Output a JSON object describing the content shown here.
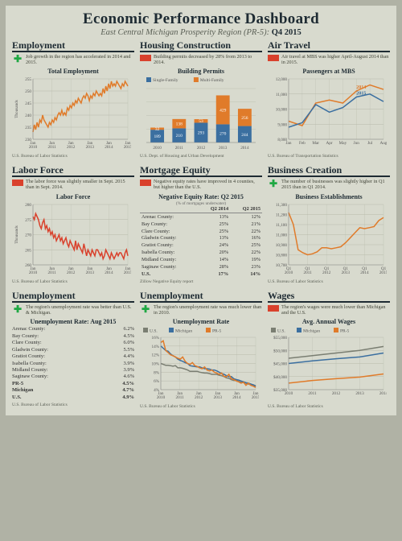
{
  "header": {
    "title": "Economic Performance Dashboard",
    "subtitle_prefix": "East Central Michigan Prosperity Region (PR-5): ",
    "subtitle_bold": "Q4 2015"
  },
  "colors": {
    "orange": "#e07b2a",
    "blue": "#3b6fa0",
    "red": "#d9412c",
    "green": "#1fa843",
    "gray": "#7a7e72",
    "grid": "#b7baab",
    "bg": "#d8dace",
    "text": "#333333"
  },
  "panels": [
    {
      "id": "employment",
      "title": "Employment",
      "indicator": "pos",
      "caption": "Job growth in the region has accelerated in 2014 and 2015.",
      "source": "U.S. Bureau of Labor Statistics",
      "chart": {
        "type": "line",
        "title": "Total Employment",
        "ylabel": "Thousands",
        "ylim": [
          230,
          255
        ],
        "yticks": [
          230,
          235,
          240,
          245,
          250,
          255
        ],
        "xticks": [
          "Jan 2010",
          "Jan 2011",
          "Jan 2012",
          "Jan 2013",
          "Jan 2014",
          "Jan 2015"
        ],
        "series": [
          {
            "name": "employment",
            "color": "#e07b2a",
            "y": [
              233,
              236,
              234,
              237,
              235,
              238,
              237,
              240,
              238,
              237,
              236,
              235,
              237,
              236,
              238,
              237,
              239,
              238,
              240,
              241,
              240,
              242,
              240,
              241,
              240,
              243,
              242,
              244,
              243,
              245,
              244,
              246,
              245,
              247,
              246,
              245,
              247,
              248,
              247,
              249,
              248,
              246,
              248,
              247,
              249,
              248,
              250,
              249,
              248,
              249,
              248,
              251,
              249,
              252,
              250,
              253,
              251,
              254,
              252,
              253,
              252,
              254,
              253,
              252,
              251,
              253,
              252,
              254,
              253,
              252
            ]
          }
        ]
      }
    },
    {
      "id": "housing",
      "title": "Housing Construction",
      "indicator": "neg",
      "caption": "Building permits decreased by 28% from 2013 to 2014.",
      "source": "U.S. Dept. of Housing and Urban Development",
      "chart": {
        "type": "stacked-bar",
        "title": "Building Permits",
        "legend": [
          {
            "label": "Single-Family",
            "color": "#3b6fa0"
          },
          {
            "label": "Multi-Family",
            "color": "#e07b2a"
          }
        ],
        "categories": [
          "2010",
          "2011",
          "2012",
          "2013",
          "2014"
        ],
        "stacks": [
          {
            "name": "single",
            "color": "#3b6fa0",
            "values": [
              189,
              210,
              293,
              270,
              244
            ]
          },
          {
            "name": "multi",
            "color": "#e07b2a",
            "values": [
              32,
              138,
              53,
              429,
              256
            ]
          }
        ],
        "ylim": [
          0,
          800
        ]
      }
    },
    {
      "id": "airtravel",
      "title": "Air Travel",
      "indicator": "neg",
      "caption": "Air travel at MBS was higher April-August 2014 than in 2015.",
      "source": "U.S. Bureau of Transportation Statistics",
      "chart": {
        "type": "line",
        "title": "Passengers at MBS",
        "ylim": [
          8000,
          12000
        ],
        "yticks": [
          8000,
          9000,
          10000,
          11000,
          12000
        ],
        "xticks": [
          "Jan",
          "Feb",
          "Mar",
          "Apr",
          "May",
          "Jun",
          "Jul",
          "Aug"
        ],
        "series": [
          {
            "name": "2014",
            "label": "2014",
            "color": "#e07b2a",
            "y": [
              9200,
              8900,
              10400,
              10600,
              10400,
              11200,
              11600,
              11300
            ]
          },
          {
            "name": "2015",
            "label": "2015",
            "color": "#3b6fa0",
            "y": [
              8800,
              9100,
              10300,
              9800,
              10100,
              10800,
              11000,
              10500
            ]
          }
        ]
      }
    },
    {
      "id": "laborforce",
      "title": "Labor Force",
      "indicator": "neg",
      "caption": "The labor force was slightly smaller in Sept. 2015 than in Sept. 2014.",
      "source": "U.S. Bureau of Labor Statistics",
      "chart": {
        "type": "line",
        "title": "Labor Force",
        "ylabel": "Thousands",
        "ylim": [
          260,
          280
        ],
        "yticks": [
          260,
          265,
          270,
          275,
          280
        ],
        "xticks": [
          "Jan 2010",
          "Jan 2011",
          "Jan 2012",
          "Jan 2013",
          "Jan 2014",
          "Jan 2015"
        ],
        "series": [
          {
            "name": "labor",
            "color": "#d9412c",
            "y": [
              276,
              275,
              277,
              276,
              275,
              273,
              272,
              274,
              275,
              272,
              273,
              271,
              272,
              270,
              271,
              269,
              270,
              268,
              269,
              270,
              268,
              269,
              267,
              268,
              269,
              267,
              266,
              268,
              267,
              266,
              265,
              268,
              265,
              267,
              266,
              265,
              264,
              267,
              265,
              263,
              265,
              264,
              263,
              265,
              264,
              263,
              265,
              265,
              264,
              263,
              264,
              262,
              263,
              265,
              264,
              263,
              262,
              264,
              263,
              262,
              263,
              264,
              263,
              264,
              264,
              263,
              262,
              264,
              265,
              263
            ]
          }
        ]
      }
    },
    {
      "id": "mortgage",
      "title": "Mortgage Equity",
      "indicator": "neg",
      "caption": "Negative equity rates have improved in 4 counties, but higher than the U.S.",
      "source": "Zillow Negative Equity report",
      "table": {
        "title": "Negative Equity Rate: Q2 2015",
        "subtitle": "(% of mortgages underwater)",
        "columns": [
          "",
          "Q2 2014",
          "Q2 2015"
        ],
        "rows": [
          [
            "Arenac County:",
            "13%",
            "12%"
          ],
          [
            "Bay County:",
            "25%",
            "21%"
          ],
          [
            "Clare County:",
            "25%",
            "22%"
          ],
          [
            "Gladwin County:",
            "13%",
            "16%"
          ],
          [
            "Gratiot County:",
            "24%",
            "25%"
          ],
          [
            "Isabella County:",
            "20%",
            "22%"
          ],
          [
            "Midland County:",
            "14%",
            "19%"
          ],
          [
            "Saginaw County:",
            "28%",
            "23%"
          ]
        ],
        "total": [
          "U.S.",
          "17%",
          "14%"
        ]
      }
    },
    {
      "id": "business",
      "title": "Business Creation",
      "indicator": "pos",
      "caption": "The number of businesses was slightly higher in Q1 2015 than in Q1 2014.",
      "source": "U.S. Bureau of Labor Statistics",
      "chart": {
        "type": "line",
        "title": "Business Establishments",
        "ylim": [
          10700,
          11300
        ],
        "yticks": [
          10700,
          10800,
          10900,
          11000,
          11100,
          11200,
          11300
        ],
        "xticks": [
          "Q1 2010",
          "Q1 2011",
          "Q1 2012",
          "Q1 2013",
          "Q1 2014",
          "Q1 2015"
        ],
        "series": [
          {
            "name": "biz",
            "color": "#e07b2a",
            "y": [
              11220,
              11100,
              10850,
              10820,
              10800,
              10810,
              10830,
              10870,
              10870,
              10860,
              10870,
              10880,
              10920,
              10970,
              11020,
              11070,
              11060,
              11070,
              11080,
              11140,
              11170
            ]
          }
        ]
      }
    },
    {
      "id": "unemployment1",
      "title": "Unemployment",
      "indicator": "pos",
      "caption": "The region's unemployment rate was better than U.S. & Michigan.",
      "source": "U.S. Bureau of Labor Statistics",
      "list": {
        "title": "Unemployment Rate: Aug 2015",
        "rows": [
          [
            "Arenac County:",
            "6.2%"
          ],
          [
            "Bay County:",
            "4.5%"
          ],
          [
            "Clare County:",
            "6.0%"
          ],
          [
            "Gladwin County:",
            "5.5%"
          ],
          [
            "Gratiot County:",
            "4.4%"
          ],
          [
            "Isabella County:",
            "3.9%"
          ],
          [
            "Midland County:",
            "3.9%"
          ],
          [
            "Saginaw County:",
            "4.6%"
          ]
        ],
        "totals": [
          [
            "PR-5",
            "4.5%"
          ],
          [
            "Michigan",
            "4.7%"
          ],
          [
            "U.S.",
            "4.9%"
          ]
        ]
      }
    },
    {
      "id": "unemployment2",
      "title": "Unemployment",
      "indicator": "pos",
      "caption": "The region's unemployment rate was much lower than in 2010.",
      "source": "U.S. Bureau of Labor Statistics",
      "chart": {
        "type": "line",
        "title": "Unemployment Rate",
        "legend": [
          {
            "label": "U.S.",
            "color": "#7a7e72"
          },
          {
            "label": "Michigan",
            "color": "#3b6fa0"
          },
          {
            "label": "PR-5",
            "color": "#e07b2a"
          }
        ],
        "ylim": [
          4,
          16
        ],
        "yticks": [
          4,
          6,
          8,
          10,
          12,
          14,
          16
        ],
        "xticks": [
          "Jan 2010",
          "Jan 2011",
          "Jan 2012",
          "Jan 2013",
          "Jan 2014",
          "Jan 2015"
        ],
        "ysuffix": "%",
        "series": [
          {
            "name": "us",
            "color": "#7a7e72",
            "y": [
              10.0,
              9.8,
              9.6,
              9.6,
              9.5,
              9.4,
              9.5,
              9.0,
              9.0,
              8.9,
              8.7,
              8.5,
              8.2,
              8.2,
              8.2,
              8.2,
              8.0,
              7.9,
              7.8,
              7.8,
              7.7,
              7.5,
              7.5,
              7.5,
              7.3,
              7.2,
              7.0,
              6.7,
              6.6,
              6.3,
              6.1,
              6.1,
              5.9,
              5.7,
              5.6,
              5.5,
              5.3,
              5.1,
              5.1,
              4.9
            ]
          },
          {
            "name": "mi",
            "color": "#3b6fa0",
            "y": [
              14,
              13.5,
              13,
              12.8,
              12.2,
              11.8,
              11.5,
              11,
              10.7,
              10.5,
              10.2,
              10,
              9.5,
              9.4,
              9.3,
              9.2,
              9.2,
              9.0,
              8.8,
              8.8,
              8.7,
              8.5,
              8.5,
              8.3,
              8.0,
              7.7,
              7.5,
              7.2,
              7.0,
              7.0,
              6.5,
              6.3,
              6.2,
              6.0,
              5.8,
              5.6,
              5.5,
              5.3,
              5.1,
              4.7
            ]
          },
          {
            "name": "pr5",
            "color": "#e07b2a",
            "y": [
              14.8,
              15.2,
              13,
              12.5,
              12,
              11.8,
              11.5,
              11.2,
              11,
              11.5,
              10.5,
              10.0,
              9.8,
              10.2,
              9.5,
              9.3,
              9.0,
              8.8,
              9.2,
              8.5,
              8.3,
              8.5,
              8.0,
              7.8,
              7.5,
              7.8,
              7.0,
              7.0,
              7.5,
              6.5,
              6.3,
              6.0,
              5.8,
              5.5,
              5.7,
              5.0,
              5.5,
              5.0,
              4.8,
              4.5
            ]
          }
        ]
      }
    },
    {
      "id": "wages",
      "title": "Wages",
      "indicator": "neg",
      "caption": "The region's wages were much lower than Michigan and the U.S.",
      "source": "U.S. Bureau of Labor Statistics",
      "chart": {
        "type": "line",
        "title": "Avg. Annual Wages",
        "legend": [
          {
            "label": "U.S.",
            "color": "#7a7e72"
          },
          {
            "label": "Michigan",
            "color": "#3b6fa0"
          },
          {
            "label": "PR-5",
            "color": "#e07b2a"
          }
        ],
        "ylim": [
          35000,
          55000
        ],
        "yticks": [
          35000,
          40000,
          45000,
          50000,
          55000
        ],
        "xticks": [
          "2010",
          "2011",
          "2012",
          "2013",
          "2014"
        ],
        "yprefix": "$",
        "series": [
          {
            "name": "us",
            "color": "#7a7e72",
            "y": [
              47000,
              48000,
              49000,
              50000,
              51500
            ]
          },
          {
            "name": "mi",
            "color": "#3b6fa0",
            "y": [
              45000,
              46000,
              46800,
              47500,
              49000
            ]
          },
          {
            "name": "pr5",
            "color": "#e07b2a",
            "y": [
              37500,
              38500,
              39200,
              39800,
              41000
            ]
          }
        ]
      }
    }
  ]
}
